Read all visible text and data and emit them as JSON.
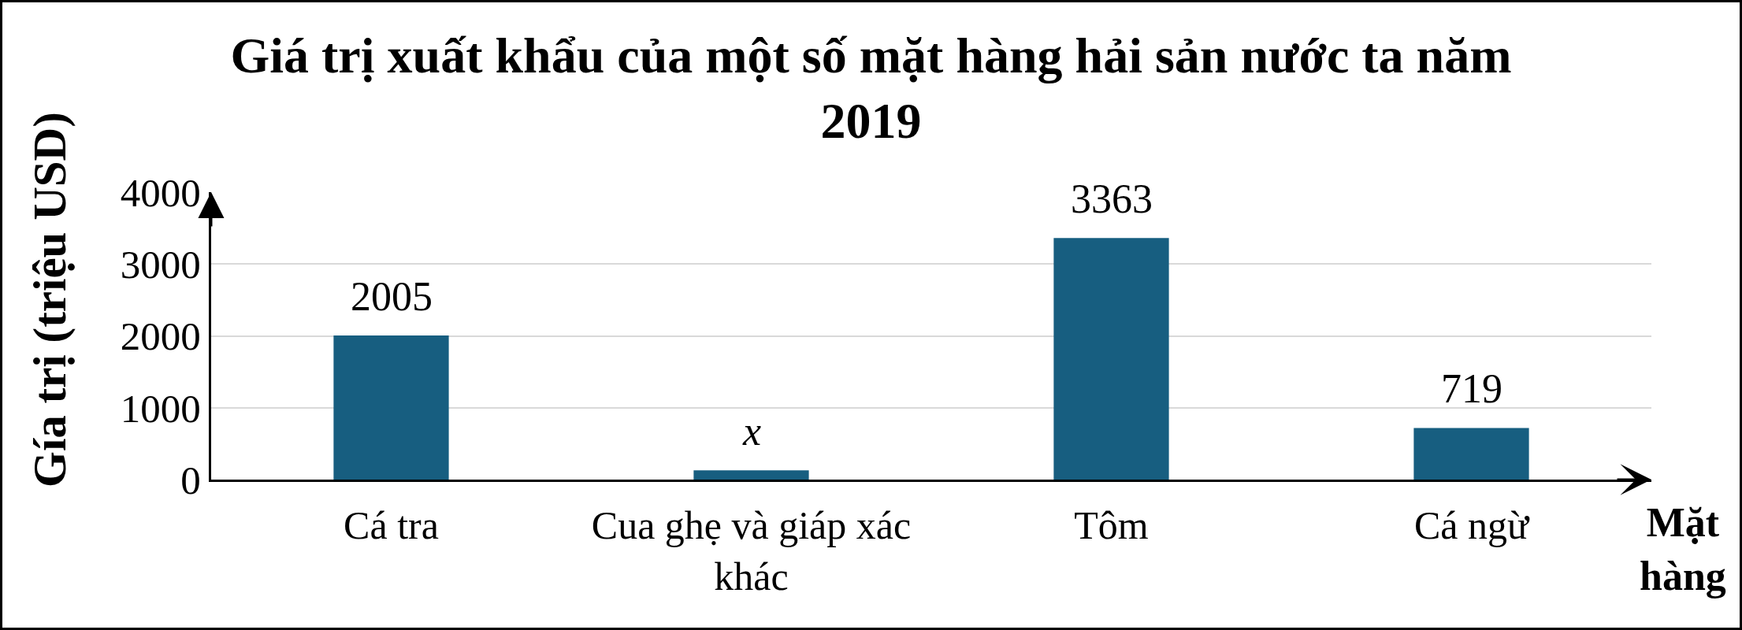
{
  "chart_data": {
    "type": "bar",
    "title": "Giá trị xuất khẩu của một số mặt hàng hải sản nước ta năm 2019",
    "xlabel": "Mặt hàng",
    "ylabel": "Gía trị (triệu USD)",
    "categories": [
      "Cá tra",
      "Cua ghẹ và giáp xác khác",
      "Tôm",
      "Cá ngừ"
    ],
    "values": [
      2005,
      130,
      3363,
      719
    ],
    "value_labels": [
      "2005",
      "x",
      "3363",
      "719"
    ],
    "color": "#175e80",
    "ylim": [
      0,
      4000
    ],
    "yticks": [
      0,
      1000,
      2000,
      3000,
      4000
    ],
    "grid": "y"
  }
}
